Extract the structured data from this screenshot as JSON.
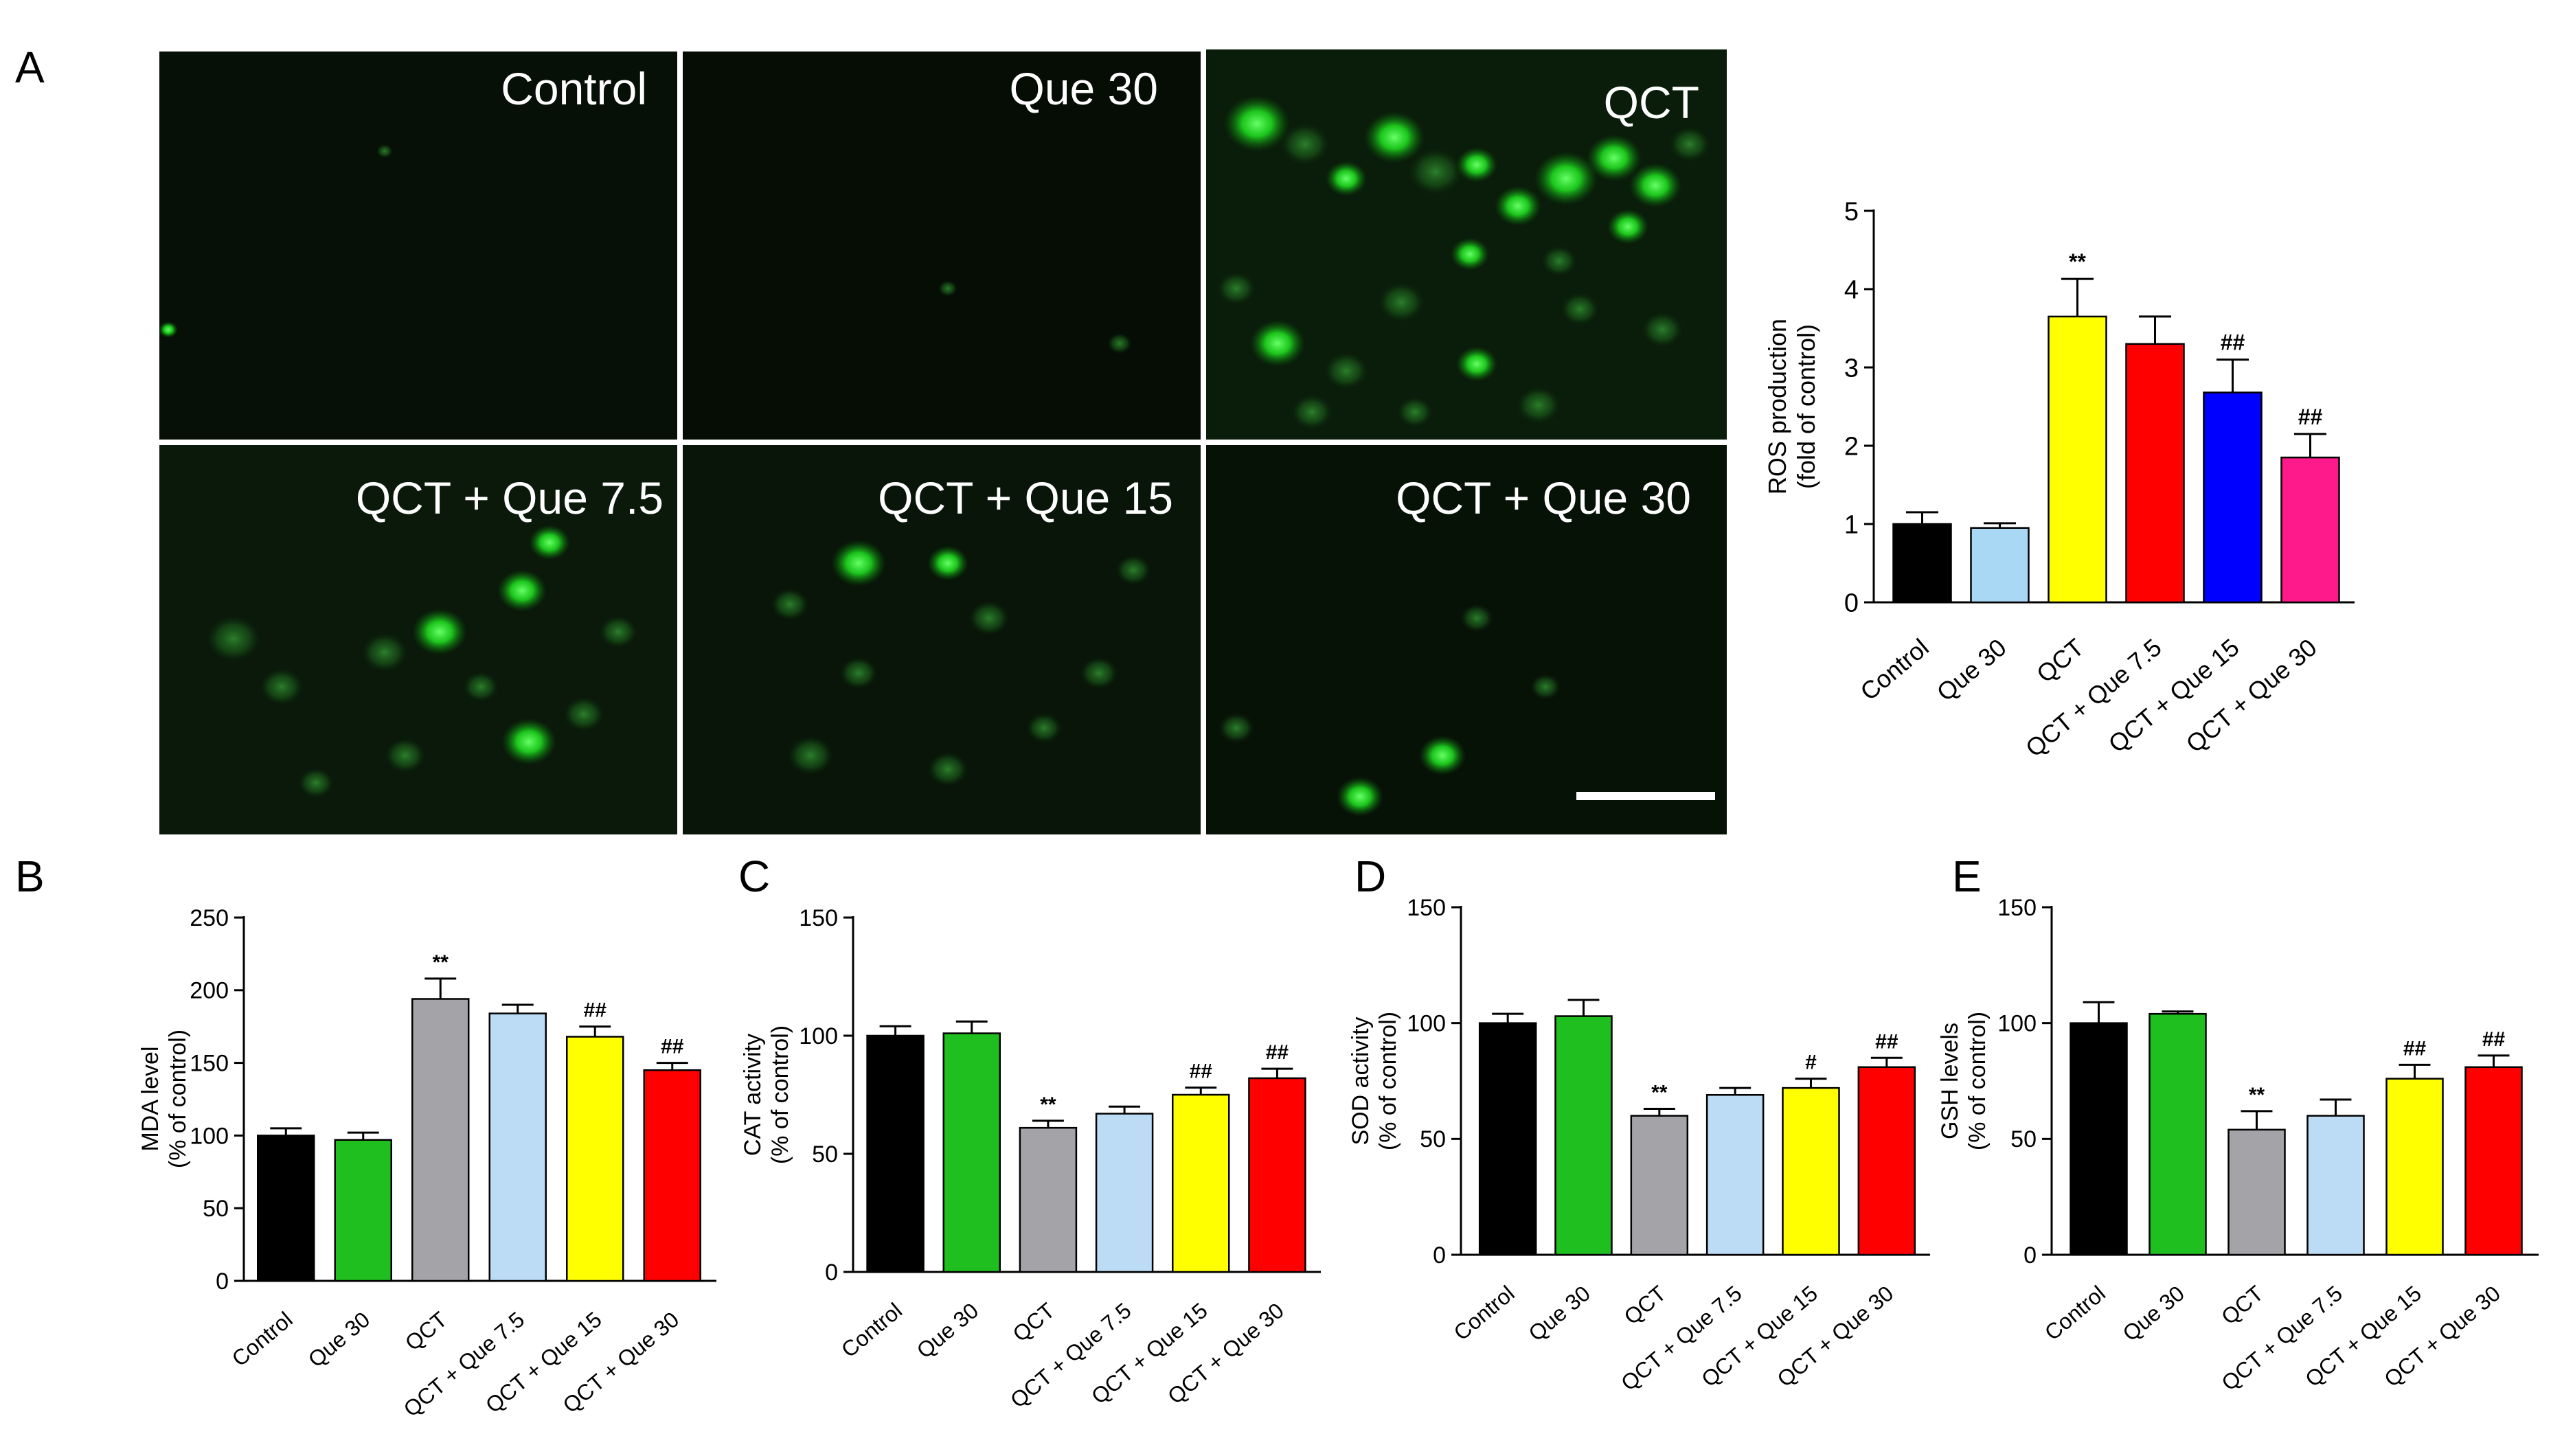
{
  "panel_letters": [
    "A",
    "B",
    "C",
    "D",
    "E"
  ],
  "micrographs": [
    {
      "label": "Control"
    },
    {
      "label": "Que 30"
    },
    {
      "label": "QCT"
    },
    {
      "label": "QCT + Que 7.5"
    },
    {
      "label": "QCT + Que 15"
    },
    {
      "label": "QCT + Que 30"
    }
  ],
  "chart_data": [
    {
      "panel": "A",
      "type": "bar",
      "categories": [
        "Control",
        "Que 30",
        "QCT",
        "QCT + Que 7.5",
        "QCT + Que 15",
        "QCT + Que 30"
      ],
      "values": [
        1.0,
        0.95,
        3.65,
        3.3,
        2.68,
        1.85
      ],
      "errors": [
        0.15,
        0.06,
        0.48,
        0.35,
        0.42,
        0.3
      ],
      "annotations": [
        "",
        "",
        "**",
        "",
        "##",
        "##"
      ],
      "colors": [
        "#000000",
        "#a9d8f5",
        "#ffff00",
        "#ff0000",
        "#0000ff",
        "#ff1a8c"
      ],
      "ylabel": "ROS production",
      "ylabel2": "(fold of control)",
      "ylim": [
        0,
        5
      ],
      "yticks": [
        0,
        1,
        2,
        3,
        4,
        5
      ],
      "grid": false
    },
    {
      "panel": "B",
      "type": "bar",
      "categories": [
        "Control",
        "Que 30",
        "QCT",
        "QCT + Que 7.5",
        "QCT + Que 15",
        "QCT + Que 30"
      ],
      "values": [
        100,
        97,
        194,
        184,
        168,
        145
      ],
      "errors": [
        5,
        5,
        14,
        6,
        7,
        5
      ],
      "annotations": [
        "",
        "",
        "**",
        "",
        "##",
        "##"
      ],
      "colors": [
        "#000000",
        "#1fbf1f",
        "#a3a3a8",
        "#bcdcf5",
        "#ffff00",
        "#ff0000"
      ],
      "ylabel": "MDA level",
      "ylabel2": "(% of control)",
      "ylim": [
        0,
        250
      ],
      "yticks": [
        0,
        50,
        100,
        150,
        200,
        250
      ],
      "grid": false
    },
    {
      "panel": "C",
      "type": "bar",
      "categories": [
        "Control",
        "Que 30",
        "QCT",
        "QCT + Que 7.5",
        "QCT + Que 15",
        "QCT + Que 30"
      ],
      "values": [
        100,
        101,
        61,
        67,
        75,
        82
      ],
      "errors": [
        4,
        5,
        3,
        3,
        3,
        4
      ],
      "annotations": [
        "",
        "",
        "**",
        "",
        "##",
        "##"
      ],
      "colors": [
        "#000000",
        "#1fbf1f",
        "#a3a3a8",
        "#bcdcf5",
        "#ffff00",
        "#ff0000"
      ],
      "ylabel": "CAT activity",
      "ylabel2": "(% of control)",
      "ylim": [
        0,
        150
      ],
      "yticks": [
        0,
        50,
        100,
        150
      ],
      "grid": false
    },
    {
      "panel": "D",
      "type": "bar",
      "categories": [
        "Control",
        "Que 30",
        "QCT",
        "QCT + Que 7.5",
        "QCT + Que 15",
        "QCT + Que 30"
      ],
      "values": [
        100,
        103,
        60,
        69,
        72,
        81
      ],
      "errors": [
        4,
        7,
        3,
        3,
        4,
        4
      ],
      "annotations": [
        "",
        "",
        "**",
        "",
        "#",
        "##"
      ],
      "colors": [
        "#000000",
        "#1fbf1f",
        "#a3a3a8",
        "#bcdcf5",
        "#ffff00",
        "#ff0000"
      ],
      "ylabel": "SOD activity",
      "ylabel2": "(% of control)",
      "ylim": [
        0,
        150
      ],
      "yticks": [
        0,
        50,
        100,
        150
      ],
      "grid": false
    },
    {
      "panel": "E",
      "type": "bar",
      "categories": [
        "Control",
        "Que 30",
        "QCT",
        "QCT + Que 7.5",
        "QCT + Que 15",
        "QCT + Que 30"
      ],
      "values": [
        100,
        104,
        54,
        60,
        76,
        81
      ],
      "errors": [
        9,
        1,
        8,
        7,
        6,
        5
      ],
      "annotations": [
        "",
        "",
        "**",
        "",
        "##",
        "##"
      ],
      "colors": [
        "#000000",
        "#1fbf1f",
        "#a3a3a8",
        "#bcdcf5",
        "#ffff00",
        "#ff0000"
      ],
      "ylabel": "GSH levels",
      "ylabel2": "(% of control)",
      "ylim": [
        0,
        150
      ],
      "yticks": [
        0,
        50,
        100,
        150
      ],
      "grid": false
    }
  ]
}
